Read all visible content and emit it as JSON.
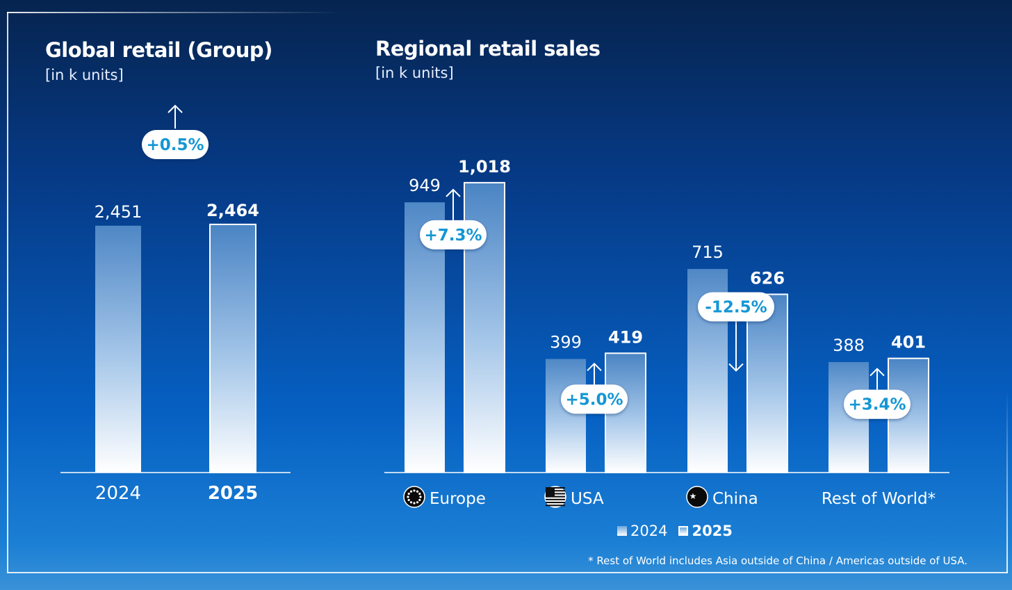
{
  "chart_data": [
    {
      "type": "bar",
      "title": "Global retail (Group)",
      "subtitle": "[in k units]",
      "categories": [
        "2024",
        "2025"
      ],
      "values": [
        2451,
        2464
      ],
      "value_labels": [
        "2,451",
        "2,464"
      ],
      "change_label": "+0.5%",
      "change_direction": "up",
      "ylim": [
        0,
        2900
      ]
    },
    {
      "type": "bar",
      "title": "Regional retail sales",
      "subtitle": "[in k units]",
      "categories": [
        "Europe",
        "USA",
        "China",
        "Rest of World*"
      ],
      "category_icons": [
        "eu-flag-icon",
        "us-flag-icon",
        "china-flag-icon",
        ""
      ],
      "series": [
        {
          "name": "2024",
          "values": [
            949,
            399,
            715,
            388
          ],
          "labels": [
            "949",
            "399",
            "715",
            "388"
          ]
        },
        {
          "name": "2025",
          "values": [
            1018,
            419,
            626,
            401
          ],
          "labels": [
            "1,018",
            "419",
            "626",
            "401"
          ]
        }
      ],
      "changes": [
        {
          "label": "+7.3%",
          "direction": "up"
        },
        {
          "label": "+5.0%",
          "direction": "up"
        },
        {
          "label": "-12.5%",
          "direction": "down"
        },
        {
          "label": "+3.4%",
          "direction": "up"
        }
      ],
      "legend": [
        "2024",
        "2025"
      ],
      "ylim": [
        0,
        1200
      ]
    }
  ],
  "footnote": "* Rest of World includes Asia outside of China / Americas outside of USA.",
  "colors": {
    "pill_text": "#1496d4",
    "background_top": "#06244f",
    "background_bottom": "#3a92d8"
  }
}
